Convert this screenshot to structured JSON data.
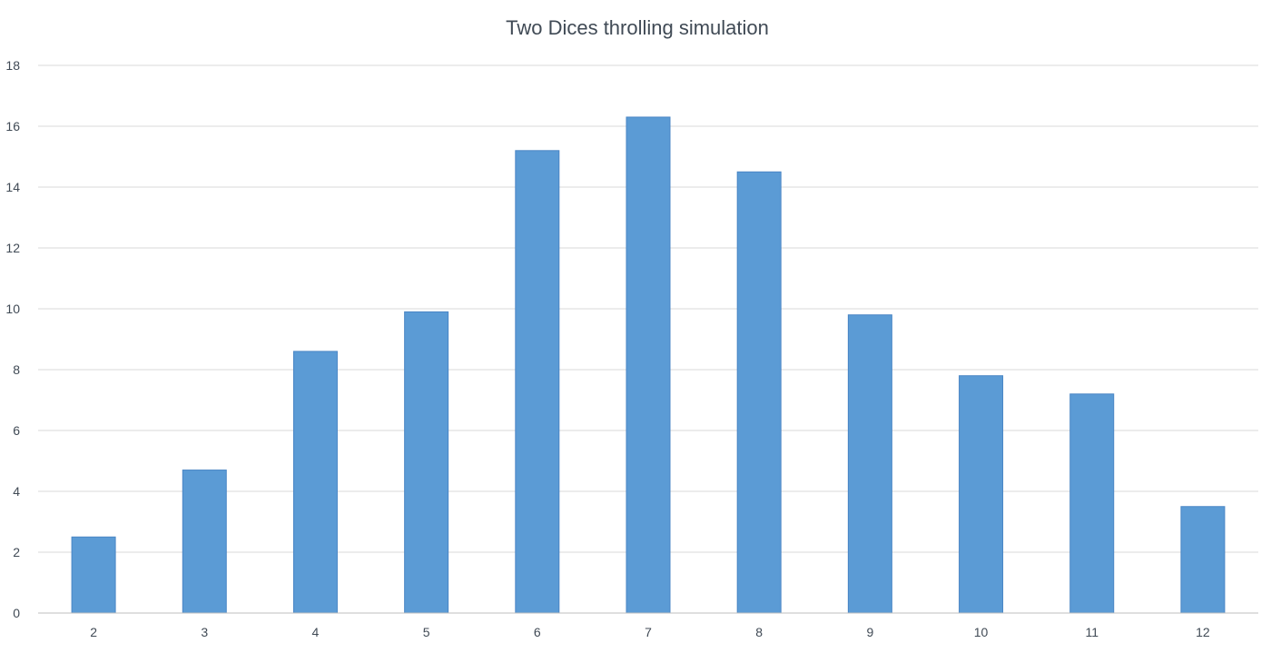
{
  "chart_data": {
    "type": "bar",
    "title": "Two Dices throlling simulation",
    "xlabel": "",
    "ylabel": "",
    "categories": [
      "2",
      "3",
      "4",
      "5",
      "6",
      "7",
      "8",
      "9",
      "10",
      "11",
      "12"
    ],
    "values": [
      2.5,
      4.7,
      8.6,
      9.9,
      15.2,
      16.3,
      14.5,
      9.8,
      7.8,
      7.2,
      3.5
    ],
    "ylim": [
      0,
      18
    ],
    "yticks": [
      0,
      2,
      4,
      6,
      8,
      10,
      12,
      14,
      16,
      18
    ],
    "grid": true,
    "legend": "none",
    "colors": {
      "bar": "#5b9bd5"
    }
  }
}
